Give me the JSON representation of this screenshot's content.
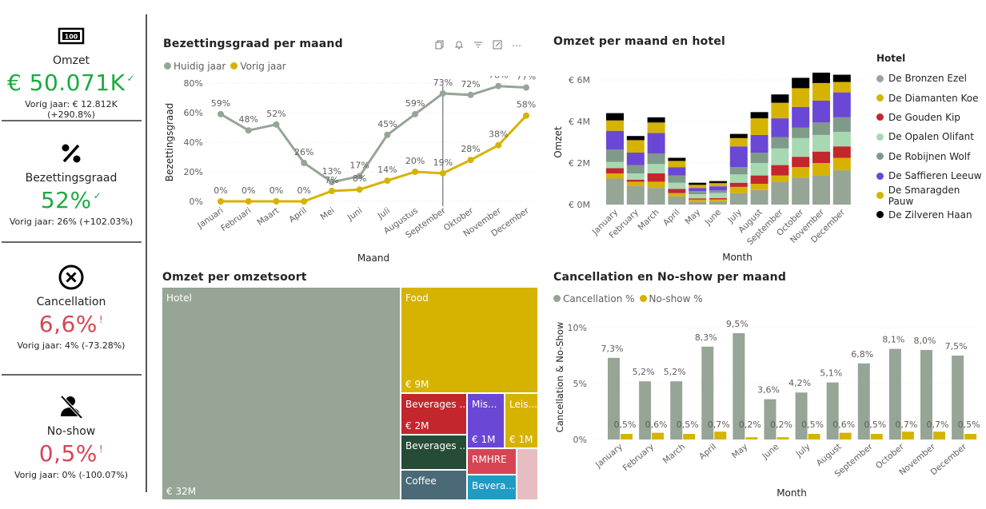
{
  "kpis": [
    {
      "label": "Omzet",
      "value": "€ 50.071K",
      "indicator": "✓",
      "sub": "Vorig jaar: € 12.812K (+290.8%)",
      "status": "good",
      "icon": "cash-icon"
    },
    {
      "label": "Bezettingsgraad",
      "value": "52%",
      "indicator": "✓",
      "sub": "Vorig jaar: 26% (+102.03%)",
      "status": "good",
      "icon": "percent-icon"
    },
    {
      "label": "Cancellation",
      "value": "6,6%",
      "indicator": "!",
      "sub": "Vorig jaar: 4% (-73.28%)",
      "status": "bad",
      "icon": "cancel-icon"
    },
    {
      "label": "No-show",
      "value": "0,5%",
      "indicator": "!",
      "sub": "Vorig jaar: 0% (-100.07%)",
      "status": "bad",
      "icon": "no-show-icon"
    }
  ],
  "colors": {
    "gray": "#96a596",
    "gold": "#d6b300",
    "good": "#1aab40",
    "bad": "#d64554"
  },
  "toolbar": {
    "icons": [
      "copy-icon",
      "bell-icon",
      "filter-icon",
      "focus-mode-icon",
      "more-options-icon"
    ]
  },
  "chart_data": [
    {
      "type": "line",
      "title": "Bezettingsgraad per maand",
      "xlabel": "Maand",
      "ylabel": "Bezettingsgraad",
      "categories": [
        "Januari",
        "Februari",
        "Maart",
        "April",
        "Mei",
        "Juni",
        "Juli",
        "Augustus",
        "September",
        "Oktober",
        "November",
        "December"
      ],
      "ylim": [
        0,
        80
      ],
      "yticks": [
        "0%",
        "20%",
        "40%",
        "60%",
        "80%"
      ],
      "series": [
        {
          "name": "Huidig jaar",
          "color": "#96a596",
          "values": [
            59,
            48,
            52,
            26,
            13,
            17,
            45,
            59,
            73,
            72,
            78,
            77
          ],
          "labels": [
            "59%",
            "48%",
            "52%",
            "26%",
            "13%",
            "17%",
            "45%",
            "59%",
            "73%",
            "72%",
            "78%",
            "77%"
          ]
        },
        {
          "name": "Vorig jaar",
          "color": "#d6b300",
          "values": [
            0,
            0,
            0,
            0,
            7,
            8,
            14,
            20,
            19,
            28,
            38,
            58
          ],
          "labels": [
            "0%",
            "0%",
            "0%",
            "0%",
            "7%",
            "8%",
            "14%",
            "20%",
            "19%",
            "28%",
            "38%",
            "58%"
          ]
        }
      ],
      "annotations": [
        "reference line at September"
      ]
    },
    {
      "type": "bar",
      "stacked": true,
      "title": "Omzet per maand en hotel",
      "xlabel": "Month",
      "ylabel": "Omzet",
      "ylim": [
        0,
        6.5
      ],
      "yticks": [
        "€ 0M",
        "€ 2M",
        "€ 4M",
        "€ 6M"
      ],
      "categories": [
        "January",
        "February",
        "March",
        "April",
        "May",
        "June",
        "July",
        "August",
        "September",
        "October",
        "November",
        "December"
      ],
      "legend_title": "Hotel",
      "series": [
        {
          "name": "De Bronzen Ezel",
          "color": "#96a596",
          "values": [
            1.25,
            0.9,
            0.8,
            0.4,
            0.12,
            0.15,
            0.55,
            0.7,
            1.1,
            1.3,
            1.4,
            1.65
          ]
        },
        {
          "name": "De Diamanten Koe",
          "color": "#d6b300",
          "values": [
            0.25,
            0.2,
            0.3,
            0.15,
            0.12,
            0.1,
            0.3,
            0.3,
            0.3,
            0.5,
            0.6,
            0.6
          ]
        },
        {
          "name": "De Gouden Kip",
          "color": "#c4262e",
          "values": [
            0.25,
            0.1,
            0.4,
            0.2,
            0.06,
            0.06,
            0.2,
            0.4,
            0.5,
            0.5,
            0.55,
            0.55
          ]
        },
        {
          "name": "De Opalen Olifant",
          "color": "#a6d9b2",
          "values": [
            0.3,
            0.3,
            0.45,
            0.3,
            0.2,
            0.25,
            0.4,
            0.6,
            0.8,
            0.9,
            0.8,
            0.7
          ]
        },
        {
          "name": "De Robijnen Wolf",
          "color": "#7f9a89",
          "values": [
            0.6,
            0.4,
            0.5,
            0.35,
            0.15,
            0.12,
            0.35,
            0.5,
            0.55,
            0.5,
            0.6,
            0.7
          ]
        },
        {
          "name": "De Saffieren Leeuw",
          "color": "#6b47d6",
          "values": [
            0.9,
            0.6,
            1.0,
            0.4,
            0.15,
            0.2,
            1.0,
            0.85,
            0.9,
            1.0,
            1.05,
            1.2
          ]
        },
        {
          "name": "De Smaragden Pauw",
          "color": "#d6b300",
          "values": [
            0.5,
            0.6,
            0.5,
            0.3,
            0.15,
            0.15,
            0.4,
            0.8,
            0.75,
            0.9,
            0.85,
            0.5
          ]
        },
        {
          "name": "De Zilveren Haan",
          "color": "#000000",
          "values": [
            0.35,
            0.2,
            0.25,
            0.15,
            0.1,
            0.1,
            0.2,
            0.3,
            0.4,
            0.5,
            0.5,
            0.35
          ]
        }
      ]
    },
    {
      "type": "treemap",
      "title": "Omzet per omzetsoort",
      "items": [
        {
          "name": "Hotel",
          "value_label": "€ 32M",
          "color": "#96a596"
        },
        {
          "name": "Food",
          "value_label": "€ 9M",
          "color": "#d6b300"
        },
        {
          "name": "Beverages ...",
          "value_label": "€ 2M",
          "color": "#c4262e"
        },
        {
          "name": "Mis...",
          "value_label": "€ 1M",
          "color": "#6b47d6"
        },
        {
          "name": "Leis...",
          "value_label": "€ 1M",
          "color": "#d6b300"
        },
        {
          "name": "Beverages ...",
          "value_label": "",
          "color": "#264c37"
        },
        {
          "name": "RMHRE",
          "value_label": "",
          "color": "#d64554"
        },
        {
          "name": "Coffee",
          "value_label": "",
          "color": "#4a6a78"
        },
        {
          "name": "Bevera...",
          "value_label": "",
          "color": "#1f9bc4"
        },
        {
          "name": "",
          "value_label": "",
          "color": "#e6bec2"
        }
      ]
    },
    {
      "type": "bar",
      "title": "Cancellation en No-show per maand",
      "xlabel": "Month",
      "ylabel": "Cancellation & No-Show",
      "ylim": [
        0,
        10
      ],
      "yticks": [
        "0%",
        "5%",
        "10%"
      ],
      "categories": [
        "January",
        "February",
        "March",
        "April",
        "May",
        "June",
        "July",
        "August",
        "September",
        "October",
        "November",
        "December"
      ],
      "series": [
        {
          "name": "Cancellation %",
          "color": "#96a596",
          "values": [
            7.3,
            5.2,
            5.2,
            8.3,
            9.5,
            3.6,
            4.2,
            5.1,
            6.8,
            8.1,
            8.0,
            7.5
          ],
          "labels": [
            "7,3%",
            "5,2%",
            "5,2%",
            "8,3%",
            "9,5%",
            "3,6%",
            "4,2%",
            "5,1%",
            "6,8%",
            "8,1%",
            "8,0%",
            "7,5%"
          ]
        },
        {
          "name": "No-show %",
          "color": "#d6b300",
          "values": [
            0.5,
            0.6,
            0.5,
            0.7,
            0.2,
            0.2,
            0.5,
            0.6,
            0.5,
            0.7,
            0.7,
            0.5
          ],
          "labels": [
            "0,5%",
            "0,6%",
            "0,5%",
            "0,7%",
            "0,2%",
            "0,2%",
            "0,5%",
            "0,6%",
            "0,5%",
            "0,7%",
            "0,7%",
            "0,5%"
          ]
        }
      ]
    }
  ]
}
